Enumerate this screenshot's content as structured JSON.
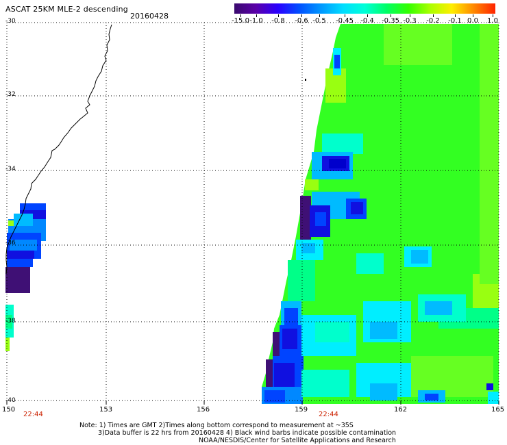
{
  "header": {
    "title": "ASCAT 25KM MLE-2 descending",
    "date": "20160428"
  },
  "colorbar": {
    "labels": [
      "-15.0",
      "-1.0",
      "-0.8",
      "-0.6",
      "-0.5",
      "-0.45",
      "-0.4",
      "-0.35",
      "-0.3",
      "-0.2",
      "-0.1",
      "0.0",
      "1.0"
    ],
    "colors": [
      "#3a0a6e",
      "#5a00a8",
      "#2a00ff",
      "#0050ff",
      "#0098ff",
      "#00ddff",
      "#00ffd8",
      "#00ff66",
      "#33ff00",
      "#aaff00",
      "#ffee00",
      "#ff8800",
      "#ff2200"
    ]
  },
  "map": {
    "lat_labels": [
      "-30",
      "-32",
      "-34",
      "-36",
      "-38",
      "-40"
    ],
    "lon_labels": [
      "150",
      "153",
      "156",
      "159",
      "162",
      "165"
    ],
    "pass_times": [
      "22:44",
      "22:44"
    ]
  },
  "notes": {
    "line1": "Note: 1) Times are GMT 2)Times along bottom correspond to measurement at ~35S",
    "line2": "3)Data buffer is 22 hrs from 20160428 4) Black wind barbs indicate possible contamination",
    "line3": "NOAA/NESDIS/Center for Satellite Applications and Research"
  }
}
